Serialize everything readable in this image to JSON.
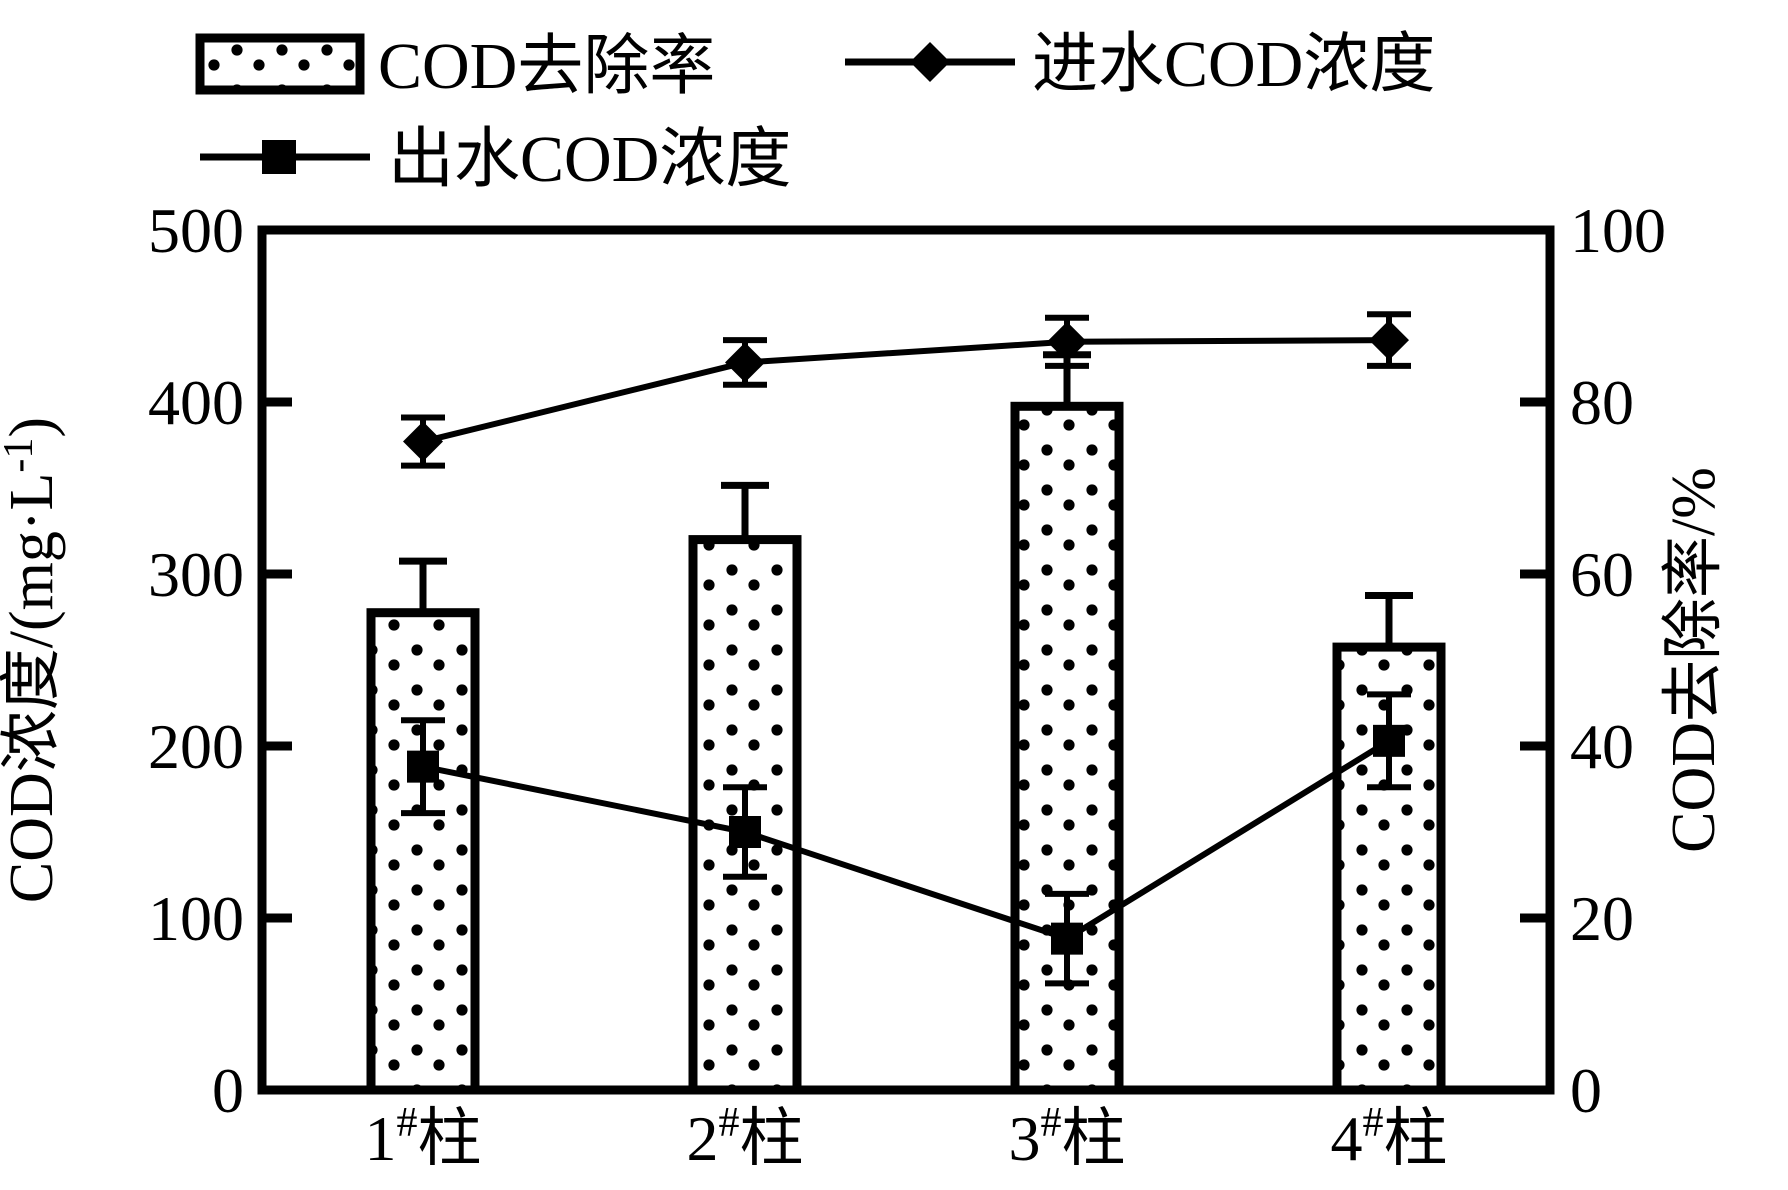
{
  "chart_data": {
    "type": "bar",
    "combo": "bar+line dual-axis",
    "title": "",
    "categories": [
      "1#柱",
      "2#柱",
      "3#柱",
      "4#柱"
    ],
    "category_parts": [
      {
        "base": "1",
        "sup": "#",
        "tail": "柱"
      },
      {
        "base": "2",
        "sup": "#",
        "tail": "柱"
      },
      {
        "base": "3",
        "sup": "#",
        "tail": "柱"
      },
      {
        "base": "4",
        "sup": "#",
        "tail": "柱"
      }
    ],
    "bar_series": {
      "name": "COD去除率",
      "axis": "right",
      "unit": "%",
      "values": [
        55.5,
        64,
        79.5,
        51.5
      ],
      "upper_errors": [
        6,
        6.3,
        6,
        6
      ],
      "fill": "white with black polka dots",
      "stroke": "#000000"
    },
    "line_series": [
      {
        "name": "进水COD浓度",
        "axis": "left",
        "marker": "diamond",
        "unit": "mg·L-1",
        "values": [
          377,
          423,
          435,
          436
        ],
        "errors": [
          14,
          13,
          14,
          15
        ]
      },
      {
        "name": "出水COD浓度",
        "axis": "left",
        "marker": "square",
        "unit": "mg·L-1",
        "values": [
          188,
          150,
          88,
          203
        ],
        "errors": [
          27,
          26,
          26,
          27
        ]
      }
    ],
    "left_axis": {
      "label": "COD浓度/(mg·L-1)",
      "label_pre": "COD浓度/(mg·L",
      "label_sup": "-1",
      "label_post": ")",
      "range": [
        0,
        500
      ],
      "ticks": [
        0,
        100,
        200,
        300,
        400,
        500
      ]
    },
    "right_axis": {
      "label": "COD去除率/%",
      "range": [
        0,
        100
      ],
      "ticks": [
        0,
        20,
        40,
        60,
        80,
        100
      ]
    },
    "grid": false,
    "legend_position": "top, two rows",
    "legend": [
      {
        "swatch": "dotted-bar",
        "series": 0
      },
      {
        "swatch": "line-diamond",
        "series": 1
      },
      {
        "swatch": "line-square",
        "series": 2
      }
    ],
    "colors": {
      "fg": "#000000",
      "bg": "#ffffff"
    }
  }
}
